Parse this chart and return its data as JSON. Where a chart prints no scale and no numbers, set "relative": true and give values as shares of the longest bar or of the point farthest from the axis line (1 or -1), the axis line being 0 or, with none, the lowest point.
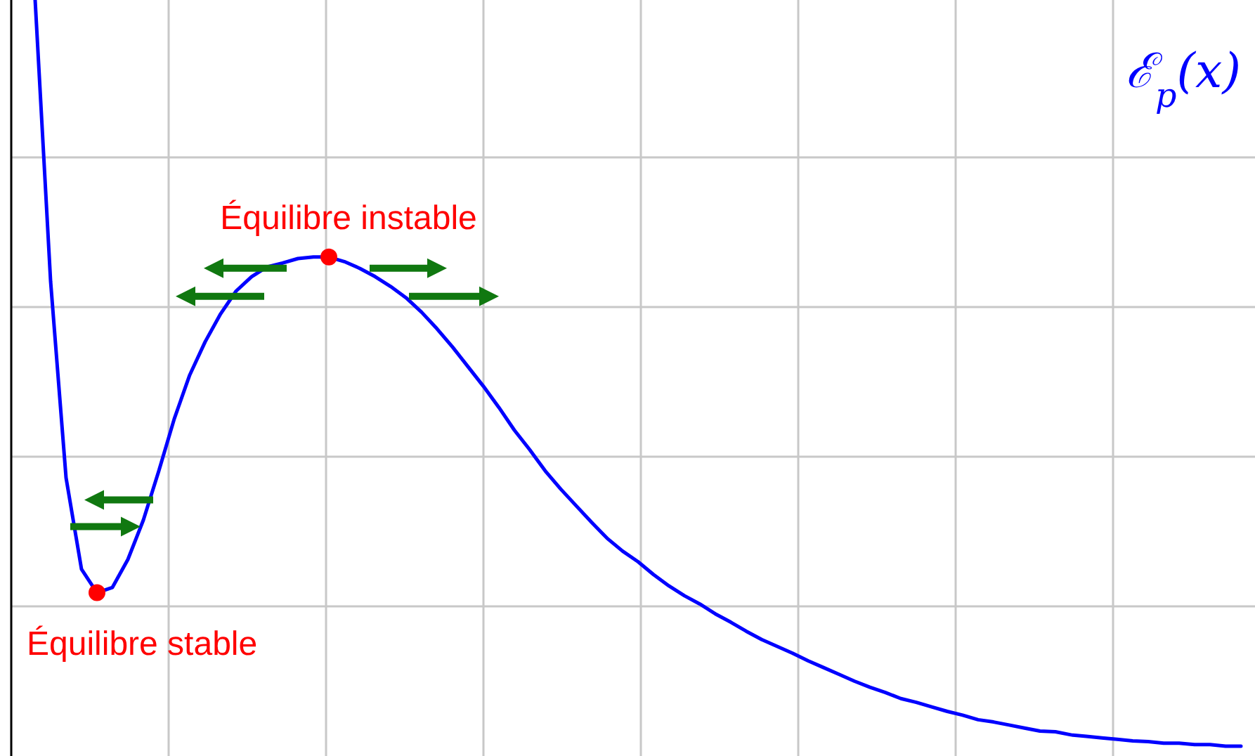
{
  "chart_data": {
    "type": "line",
    "title": "ℰ$_{p}$(x)",
    "relative": true,
    "grid": true,
    "categories": [
      null,
      null,
      null,
      null,
      null,
      null,
      null,
      null,
      null,
      null,
      null,
      null,
      null,
      null,
      null,
      null,
      null,
      null,
      null,
      null,
      null,
      null,
      null,
      null,
      null,
      null,
      null,
      null,
      null,
      null,
      null,
      null,
      null,
      null,
      null,
      null,
      null,
      null,
      null,
      null,
      null,
      null,
      null,
      null,
      null,
      null,
      null,
      null,
      null,
      null,
      null,
      null,
      null,
      null,
      null,
      null,
      null,
      null,
      null,
      null,
      null,
      null,
      null,
      null,
      null,
      null,
      null,
      null,
      null,
      null,
      null,
      null,
      null,
      null,
      null,
      null,
      null,
      null,
      null
    ],
    "series": [
      {
        "color": "#0000ff",
        "values": [
          1.0,
          0.628,
          0.368,
          0.247,
          0.216,
          0.223,
          0.26,
          0.312,
          0.377,
          0.446,
          0.504,
          0.548,
          0.585,
          0.615,
          0.634,
          0.647,
          0.652,
          0.658,
          0.66,
          0.66,
          0.654,
          0.645,
          0.634,
          0.621,
          0.606,
          0.587,
          0.565,
          0.541,
          0.515,
          0.489,
          0.461,
          0.431,
          0.405,
          0.377,
          0.353,
          0.331,
          0.309,
          0.288,
          0.271,
          0.257,
          0.24,
          0.225,
          0.212,
          0.201,
          0.188,
          0.177,
          0.165,
          0.154,
          0.145,
          0.136,
          0.126,
          0.117,
          0.108,
          0.099,
          0.091,
          0.084,
          0.076,
          0.071,
          0.065,
          0.059,
          0.054,
          0.048,
          0.045,
          0.041,
          0.037,
          0.033,
          0.032,
          0.028,
          0.026,
          0.024,
          0.022,
          0.02,
          0.019,
          0.017,
          0.017,
          0.015,
          0.015,
          0.013,
          0.013
        ]
      }
    ],
    "annotations": [
      "Équilibre stable",
      "Équilibre instable"
    ]
  }
}
